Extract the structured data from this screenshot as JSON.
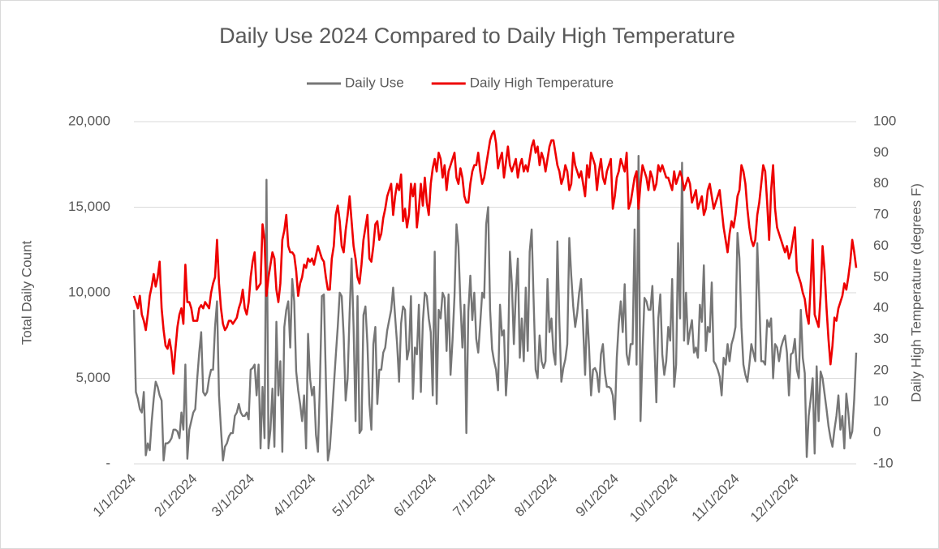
{
  "chart_data": {
    "type": "line",
    "title": "Daily Use 2024 Compared to Daily High Temperature",
    "y_label": "Total Daily Count",
    "y2_label": "Daily High Temperature (degrees F)",
    "legend": "top",
    "grid": true,
    "ylim": [
      0,
      20000
    ],
    "yticks": [
      {
        "value": 0,
        "label": "-"
      },
      {
        "value": 5000,
        "label": "5,000"
      },
      {
        "value": 10000,
        "label": "10,000"
      },
      {
        "value": 15000,
        "label": "15,000"
      },
      {
        "value": 20000,
        "label": "20,000"
      }
    ],
    "y2lim": [
      -10,
      100
    ],
    "y2ticks": [
      -10,
      0,
      10,
      20,
      30,
      40,
      50,
      60,
      70,
      80,
      90,
      100
    ],
    "categories": [
      "1/1/2024",
      null,
      null,
      null,
      null,
      null,
      null,
      null,
      null,
      null,
      null,
      null,
      null,
      null,
      null,
      null,
      null,
      null,
      null,
      null,
      null,
      null,
      null,
      null,
      null,
      null,
      null,
      null,
      null,
      null,
      null,
      "2/1/2024",
      null,
      null,
      null,
      null,
      null,
      null,
      null,
      null,
      null,
      null,
      null,
      null,
      null,
      null,
      null,
      null,
      null,
      null,
      null,
      null,
      null,
      null,
      null,
      null,
      null,
      null,
      null,
      null,
      "3/1/2024",
      null,
      null,
      null,
      null,
      null,
      null,
      null,
      null,
      null,
      null,
      null,
      null,
      null,
      null,
      null,
      null,
      null,
      null,
      null,
      null,
      null,
      null,
      null,
      null,
      null,
      null,
      null,
      null,
      null,
      null,
      "4/1/2024",
      null,
      null,
      null,
      null,
      null,
      null,
      null,
      null,
      null,
      null,
      null,
      null,
      null,
      null,
      null,
      null,
      null,
      null,
      null,
      null,
      null,
      null,
      null,
      null,
      null,
      null,
      null,
      null,
      null,
      "5/1/2024",
      null,
      null,
      null,
      null,
      null,
      null,
      null,
      null,
      null,
      null,
      null,
      null,
      null,
      null,
      null,
      null,
      null,
      null,
      null,
      null,
      null,
      null,
      null,
      null,
      null,
      null,
      null,
      null,
      null,
      null,
      "6/1/2024",
      null,
      null,
      null,
      null,
      null,
      null,
      null,
      null,
      null,
      null,
      null,
      null,
      null,
      null,
      null,
      null,
      null,
      null,
      null,
      null,
      null,
      null,
      null,
      null,
      null,
      null,
      null,
      null,
      null,
      "7/1/2024",
      null,
      null,
      null,
      null,
      null,
      null,
      null,
      null,
      null,
      null,
      null,
      null,
      null,
      null,
      null,
      null,
      null,
      null,
      null,
      null,
      null,
      null,
      null,
      null,
      null,
      null,
      null,
      null,
      null,
      null,
      "8/1/2024",
      null,
      null,
      null,
      null,
      null,
      null,
      null,
      null,
      null,
      null,
      null,
      null,
      null,
      null,
      null,
      null,
      null,
      null,
      null,
      null,
      null,
      null,
      null,
      null,
      null,
      null,
      null,
      null,
      null,
      null,
      "9/1/2024",
      null,
      null,
      null,
      null,
      null,
      null,
      null,
      null,
      null,
      null,
      null,
      null,
      null,
      null,
      null,
      null,
      null,
      null,
      null,
      null,
      null,
      null,
      null,
      null,
      null,
      null,
      null,
      null,
      null,
      "10/1/2024",
      null,
      null,
      null,
      null,
      null,
      null,
      null,
      null,
      null,
      null,
      null,
      null,
      null,
      null,
      null,
      null,
      null,
      null,
      null,
      null,
      null,
      null,
      null,
      null,
      null,
      null,
      null,
      null,
      null,
      null,
      "11/1/2024",
      null,
      null,
      null,
      null,
      null,
      null,
      null,
      null,
      null,
      null,
      null,
      null,
      null,
      null,
      null,
      null,
      null,
      null,
      null,
      null,
      null,
      null,
      null,
      null,
      null,
      null,
      null,
      null,
      null,
      "12/1/2024",
      null,
      null,
      null,
      null,
      null,
      null,
      null,
      null,
      null,
      null,
      null,
      null,
      null,
      null,
      null,
      null,
      null,
      null,
      null,
      null,
      null,
      null,
      null,
      null,
      null,
      null,
      null,
      null,
      null,
      null
    ],
    "series": [
      {
        "name": "Daily Use",
        "color": "#767676",
        "axis": "y",
        "values": [
          9000,
          4200,
          3800,
          3200,
          3000,
          4200,
          500,
          1200,
          800,
          2500,
          3800,
          4800,
          4500,
          4000,
          3700,
          200,
          1200,
          1200,
          1300,
          1500,
          2000,
          2000,
          1900,
          1500,
          3000,
          2000,
          5800,
          300,
          2000,
          2500,
          3000,
          3200,
          5000,
          6500,
          7700,
          4200,
          4000,
          4200,
          5000,
          5500,
          5500,
          8000,
          9500,
          4000,
          2000,
          200,
          1000,
          1200,
          1600,
          1800,
          1800,
          2800,
          3000,
          3500,
          3000,
          2800,
          2800,
          3000,
          2600,
          5500,
          5600,
          5800,
          4000,
          5800,
          900,
          4500,
          1500,
          16600,
          900,
          2000,
          4400,
          1000,
          8300,
          4000,
          6000,
          700,
          8000,
          9000,
          9500,
          6800,
          10800,
          9500,
          5400,
          4300,
          3500,
          2500,
          4000,
          900,
          7600,
          5000,
          4000,
          4500,
          1700,
          700,
          4800,
          9800,
          9900,
          5000,
          200,
          900,
          2600,
          4500,
          6300,
          8000,
          10000,
          9800,
          7500,
          3700,
          5000,
          8800,
          12000,
          8000,
          2500,
          9800,
          1800,
          2000,
          8700,
          9200,
          7000,
          3500,
          2000,
          7000,
          8000,
          3500,
          5500,
          5500,
          6500,
          6800,
          7800,
          8400,
          9000,
          10300,
          8600,
          7000,
          4800,
          8200,
          9200,
          9000,
          6100,
          6700,
          9800,
          3800,
          6800,
          6400,
          9300,
          4200,
          8300,
          10000,
          9800,
          8500,
          7700,
          4000,
          12400,
          3500,
          9000,
          8500,
          10000,
          9700,
          6600,
          9900,
          5200,
          7200,
          9800,
          14000,
          12700,
          9400,
          6800,
          9300,
          1800,
          8900,
          11000,
          8400,
          10000,
          7300,
          6500,
          8200,
          10000,
          9700,
          14000,
          15000,
          9000,
          6700,
          6000,
          5500,
          4300,
          9300,
          7500,
          7800,
          4000,
          6000,
          12400,
          10500,
          7000,
          10000,
          12000,
          6200,
          8500,
          6000,
          10300,
          6600,
          12400,
          13700,
          9500,
          5500,
          5000,
          7500,
          6000,
          5600,
          6000,
          10800,
          7700,
          8500,
          6500,
          5800,
          13000,
          8300,
          4800,
          5600,
          6100,
          7000,
          13200,
          11000,
          9200,
          8000,
          8800,
          10000,
          10800,
          8000,
          5200,
          9000,
          6800,
          4000,
          5500,
          5600,
          5300,
          4200,
          6400,
          7000,
          5300,
          4500,
          4500,
          4400,
          4000,
          2600,
          6200,
          8200,
          9500,
          7700,
          10500,
          6400,
          5800,
          7000,
          7000,
          13700,
          5800,
          18000,
          2500,
          6500,
          9700,
          9500,
          9000,
          9000,
          10400,
          7000,
          3600,
          8500,
          9900,
          6400,
          5200,
          6000,
          8000,
          7200,
          10800,
          4500,
          5800,
          12900,
          8500,
          17600,
          7200,
          10000,
          7000,
          7800,
          8400,
          6500,
          6800,
          6200,
          9300,
          8300,
          11600,
          6600,
          8000,
          7700,
          10600,
          6000,
          5800,
          5500,
          5100,
          4000,
          6200,
          5800,
          7000,
          6000,
          7000,
          7400,
          8000,
          13500,
          12000,
          8000,
          5800,
          5200,
          4800,
          5800,
          7000,
          6500,
          6000,
          12900,
          9600,
          6000,
          6000,
          5800,
          8400,
          8000,
          8500,
          5000,
          7000,
          6800,
          6000,
          6800,
          7200,
          7500,
          6500,
          4000,
          6400,
          6500,
          7300,
          5500,
          5000,
          9000,
          6200,
          5300,
          400,
          2800,
          3800,
          5000,
          600,
          5700,
          2500,
          5400,
          5000,
          4100,
          3200,
          2200,
          1500,
          1000,
          2000,
          2800,
          4000,
          2000,
          2800,
          900,
          4100,
          3000,
          1500,
          1900,
          3800,
          6500
        ]
      },
      {
        "name": "Daily High Temperature",
        "color": "#ee0000",
        "axis": "y2",
        "values": [
          44,
          42,
          40,
          44,
          38,
          36,
          33,
          38,
          44,
          47,
          51,
          47,
          50,
          55,
          40,
          33,
          28,
          27,
          30,
          26,
          19,
          27,
          34,
          38,
          40,
          35,
          54,
          42,
          42,
          40,
          36,
          36,
          36,
          40,
          41,
          40,
          42,
          41,
          40,
          45,
          48,
          50,
          62,
          48,
          40,
          35,
          33,
          34,
          36,
          36,
          35,
          36,
          37,
          40,
          42,
          46,
          40,
          38,
          42,
          50,
          55,
          58,
          46,
          47,
          48,
          67,
          62,
          44,
          50,
          54,
          58,
          56,
          46,
          42,
          48,
          62,
          65,
          70,
          60,
          58,
          58,
          57,
          52,
          44,
          48,
          50,
          54,
          53,
          56,
          55,
          56,
          54,
          57,
          60,
          58,
          56,
          55,
          50,
          46,
          46,
          56,
          60,
          70,
          73,
          68,
          60,
          58,
          65,
          70,
          76,
          68,
          60,
          56,
          50,
          48,
          54,
          62,
          66,
          70,
          56,
          55,
          60,
          67,
          68,
          62,
          64,
          69,
          72,
          76,
          78,
          80,
          70,
          76,
          80,
          78,
          83,
          68,
          72,
          66,
          70,
          80,
          76,
          80,
          66,
          72,
          80,
          73,
          82,
          74,
          70,
          80,
          85,
          88,
          84,
          90,
          88,
          82,
          86,
          78,
          84,
          86,
          88,
          90,
          82,
          80,
          85,
          82,
          76,
          74,
          74,
          80,
          84,
          86,
          86,
          90,
          84,
          80,
          82,
          86,
          90,
          94,
          96,
          97,
          93,
          85,
          88,
          90,
          82,
          87,
          92,
          86,
          84,
          86,
          88,
          82,
          86,
          88,
          84,
          86,
          84,
          88,
          92,
          94,
          90,
          92,
          86,
          90,
          88,
          84,
          88,
          92,
          94,
          94,
          90,
          86,
          84,
          80,
          82,
          86,
          84,
          78,
          80,
          90,
          86,
          84,
          82,
          84,
          80,
          76,
          86,
          82,
          90,
          88,
          86,
          78,
          84,
          88,
          82,
          80,
          84,
          86,
          88,
          72,
          76,
          82,
          84,
          88,
          86,
          84,
          90,
          72,
          74,
          78,
          82,
          84,
          72,
          80,
          86,
          84,
          82,
          78,
          84,
          82,
          78,
          80,
          86,
          84,
          86,
          84,
          82,
          82,
          80,
          78,
          84,
          80,
          82,
          84,
          82,
          78,
          80,
          82,
          80,
          74,
          76,
          78,
          72,
          74,
          76,
          70,
          72,
          78,
          80,
          76,
          72,
          74,
          76,
          78,
          72,
          66,
          62,
          58,
          64,
          68,
          66,
          70,
          76,
          78,
          86,
          84,
          80,
          72,
          66,
          62,
          60,
          62,
          70,
          74,
          80,
          86,
          84,
          74,
          62,
          78,
          86,
          72,
          66,
          64,
          62,
          60,
          58,
          60,
          56,
          58,
          62,
          66,
          52,
          50,
          48,
          45,
          43,
          38,
          35,
          48,
          62,
          38,
          36,
          34,
          44,
          60,
          52,
          40,
          30,
          22,
          28,
          37,
          36,
          40,
          42,
          44,
          48,
          46,
          50,
          55,
          62,
          58,
          53
        ]
      }
    ]
  }
}
